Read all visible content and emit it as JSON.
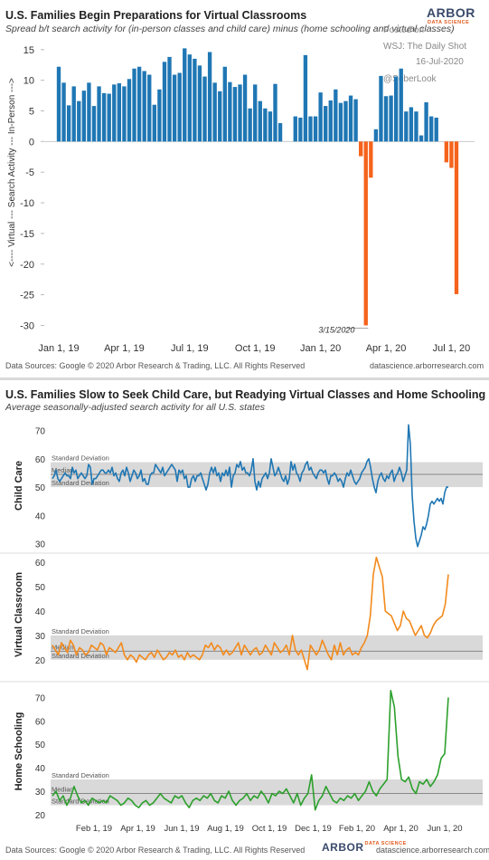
{
  "top": {
    "title": "U.S. Families Begin Preparations for Virtual Classrooms",
    "subtitle": "Spread b/t search activity for (in-person classes and child care) minus (home schooling and virtual classes)",
    "footer_left": "Data Sources: Google © 2020 Arbor Research & Trading, LLC. All Rights Reserved",
    "footer_right": "datascience.arborresearch.com",
    "logo_text": "ARBOR",
    "logo_small": "DATA SCIENCE",
    "watermark": [
      "Posted on",
      "WSJ: The Daily Shot",
      "16-Jul-2020",
      "@SoberLook"
    ]
  },
  "bottom": {
    "title": "U.S. Families Slow to Seek Child Care, but Readying Virtual Classes and Home Schooling",
    "subtitle": "Average seasonally-adjusted search activity for all U.S. states",
    "footer_left": "Data Sources: Google © 2020 Arbor Research & Trading, LLC. All Rights Reserved",
    "footer_right": "datascience.arborresearch.com",
    "logo_text": "ARBOR",
    "logo_small": "DATA SCIENCE"
  },
  "colors": {
    "blue": "#1f77b4",
    "orange": "#f5631c",
    "line_orange": "#f28a1c",
    "green": "#2ca02c",
    "band": "#d9d9d9",
    "median": "#888888"
  },
  "chart_data": [
    {
      "type": "bar",
      "title": "U.S. Families Begin Preparations for Virtual Classrooms",
      "ylabel": "<---- Virtual --- Search Activity --- In-Person --->",
      "ylim": [
        -32,
        16
      ],
      "yticks": [
        15,
        10,
        5,
        0,
        -5,
        -10,
        -15,
        -20,
        -25,
        -30
      ],
      "xticks": [
        "Jan 1, 19",
        "Apr 1, 19",
        "Jul 1, 19",
        "Oct 1, 19",
        "Jan 1, 20",
        "Apr 1, 20",
        "Jul 1, 20"
      ],
      "xtick_weeks": [
        0,
        13,
        26,
        39,
        52,
        65,
        78
      ],
      "annotation": {
        "text": "3/15/2020",
        "week": 62
      },
      "values": [
        12.2,
        9.6,
        5.9,
        9.0,
        6.6,
        8.3,
        9.6,
        5.8,
        9.0,
        7.9,
        7.8,
        9.3,
        9.5,
        9.0,
        10.2,
        11.9,
        12.2,
        11.5,
        10.9,
        6.0,
        8.5,
        13.0,
        13.8,
        10.9,
        11.2,
        15.2,
        14.2,
        13.5,
        12.4,
        10.6,
        14.6,
        9.6,
        8.2,
        12.2,
        9.7,
        8.9,
        9.3,
        10.9,
        5.4,
        9.3,
        6.6,
        5.4,
        4.9,
        9.4,
        3.0,
        null,
        null,
        4.1,
        3.9,
        14.1,
        4.1,
        4.1,
        8.0,
        5.8,
        6.7,
        8.5,
        6.3,
        6.6,
        7.5,
        6.9,
        -2.4,
        -30.0,
        -5.9,
        2.0,
        10.7,
        7.4,
        7.5,
        10.6,
        11.9,
        4.9,
        5.6,
        4.9,
        1.0,
        6.4,
        4.1,
        3.9,
        null,
        -3.4,
        -4.3,
        -24.9
      ],
      "bar_colors": "positive blue, negative orange"
    },
    {
      "type": "line",
      "panel": "Child Care",
      "ylim": [
        27,
        74
      ],
      "yticks": [
        70,
        60,
        50,
        40,
        30
      ],
      "median": 54.5,
      "std_band": [
        50.0,
        58.8
      ],
      "band_labels": [
        "Standard Deviation",
        "Median",
        "Standard Deviation"
      ],
      "values": [
        53,
        54,
        56,
        53,
        52,
        53,
        54,
        55,
        54,
        54,
        53,
        57,
        55,
        56,
        53,
        54,
        55,
        54,
        53,
        54,
        58,
        57,
        51,
        53,
        53,
        54,
        55,
        56,
        56,
        55,
        55,
        56,
        55,
        57,
        54,
        55,
        53,
        52,
        55,
        56,
        54,
        57,
        55,
        52,
        54,
        56,
        55,
        53,
        54,
        56,
        52,
        53,
        51,
        51,
        54,
        55,
        55,
        58,
        57,
        56,
        55,
        57,
        54,
        55,
        56,
        57,
        58,
        57,
        56,
        52,
        56,
        55,
        56,
        53,
        54,
        50,
        50,
        53,
        54,
        52,
        54,
        54,
        55,
        53,
        51,
        49,
        51,
        55,
        57,
        55,
        57,
        54,
        55,
        52,
        55,
        54,
        56,
        54,
        57,
        50,
        54,
        55,
        58,
        57,
        59,
        56,
        57,
        55,
        55,
        54,
        56,
        60,
        52,
        49,
        52,
        50,
        53,
        54,
        55,
        53,
        55,
        60,
        57,
        54,
        55,
        57,
        55,
        53,
        52,
        54,
        51,
        53,
        59,
        56,
        58,
        55,
        54,
        52,
        55,
        56,
        58,
        59,
        56,
        57,
        55,
        54,
        53,
        55,
        56,
        56,
        55,
        56,
        53,
        51,
        54,
        54,
        55,
        54,
        52,
        53,
        52,
        50,
        53,
        55,
        54,
        56,
        54,
        52,
        51,
        52,
        53,
        55,
        56,
        57,
        59,
        60,
        57,
        53,
        50,
        48,
        52,
        54,
        55,
        53,
        52,
        54,
        53,
        55,
        56,
        52,
        54,
        55,
        57,
        55,
        52,
        54,
        56,
        72,
        65,
        47,
        38,
        32,
        29,
        31,
        33,
        36,
        35,
        37,
        40,
        44,
        45,
        44,
        45,
        46,
        45,
        46,
        44,
        48,
        50,
        50
      ],
      "series_name": "Child Care"
    },
    {
      "type": "line",
      "panel": "Virtual Classroom",
      "ylim": [
        14,
        63
      ],
      "yticks": [
        60,
        50,
        40,
        30,
        20
      ],
      "median": 23.5,
      "std_band": [
        20.0,
        30.0
      ],
      "band_labels": [
        "Standard Deviation",
        "Median",
        "Standard Deviation"
      ],
      "values": [
        26,
        24,
        22,
        27,
        25,
        23,
        28,
        26,
        22,
        25,
        24,
        22,
        23,
        26,
        25,
        24,
        27,
        26,
        22,
        25,
        24,
        23,
        25,
        27,
        22,
        20,
        22,
        21,
        19,
        22,
        21,
        20,
        22,
        23,
        21,
        24,
        22,
        20,
        21,
        23,
        22,
        24,
        21,
        22,
        20,
        23,
        21,
        22,
        21,
        20,
        22,
        26,
        25,
        27,
        24,
        26,
        25,
        22,
        24,
        22,
        23,
        25,
        27,
        22,
        26,
        24,
        22,
        24,
        25,
        22,
        23,
        26,
        24,
        22,
        27,
        25,
        23,
        24,
        26,
        22,
        30,
        24,
        22,
        24,
        20,
        16,
        26,
        24,
        22,
        24,
        28,
        25,
        22,
        20,
        26,
        22,
        27,
        22,
        24,
        25,
        22,
        23,
        22,
        25,
        27,
        30,
        38,
        55,
        62,
        58,
        54,
        40,
        39,
        38,
        35,
        32,
        34,
        40,
        37,
        36,
        33,
        30,
        32,
        34,
        30,
        29,
        31,
        34,
        36,
        37,
        38,
        43,
        55
      ],
      "series_name": "Virtual Classroom"
    },
    {
      "type": "line",
      "panel": "Home Schooling",
      "ylim": [
        18,
        76
      ],
      "yticks": [
        70,
        60,
        50,
        40,
        30,
        20
      ],
      "median": 29.0,
      "std_band": [
        24.0,
        35.0
      ],
      "band_labels": [
        "Standard Deviation",
        "Median",
        "Standard Deviation"
      ],
      "values": [
        28,
        30,
        26,
        28,
        24,
        27,
        32,
        28,
        25,
        26,
        24,
        27,
        26,
        25,
        26,
        25,
        28,
        27,
        26,
        24,
        25,
        27,
        26,
        24,
        23,
        25,
        26,
        24,
        25,
        27,
        29,
        27,
        26,
        25,
        28,
        27,
        28,
        25,
        23,
        26,
        27,
        26,
        28,
        27,
        29,
        26,
        25,
        28,
        27,
        30,
        26,
        24,
        26,
        27,
        29,
        26,
        28,
        27,
        30,
        28,
        25,
        29,
        28,
        30,
        29,
        31,
        28,
        25,
        29,
        24,
        27,
        29,
        37,
        22,
        26,
        28,
        32,
        29,
        26,
        25,
        27,
        26,
        28,
        27,
        29,
        26,
        28,
        30,
        34,
        30,
        28,
        31,
        33,
        35,
        73,
        66,
        45,
        35,
        34,
        36,
        31,
        29,
        34,
        33,
        35,
        32,
        34,
        37,
        44,
        46,
        70
      ],
      "series_name": "Home Schooling"
    }
  ],
  "bottom_xticks": [
    "Feb 1, 19",
    "Apr 1, 19",
    "Jun 1, 19",
    "Aug 1, 19",
    "Oct 1, 19",
    "Dec 1, 19",
    "Feb 1, 20",
    "Apr 1, 20",
    "Jun 1, 20"
  ]
}
